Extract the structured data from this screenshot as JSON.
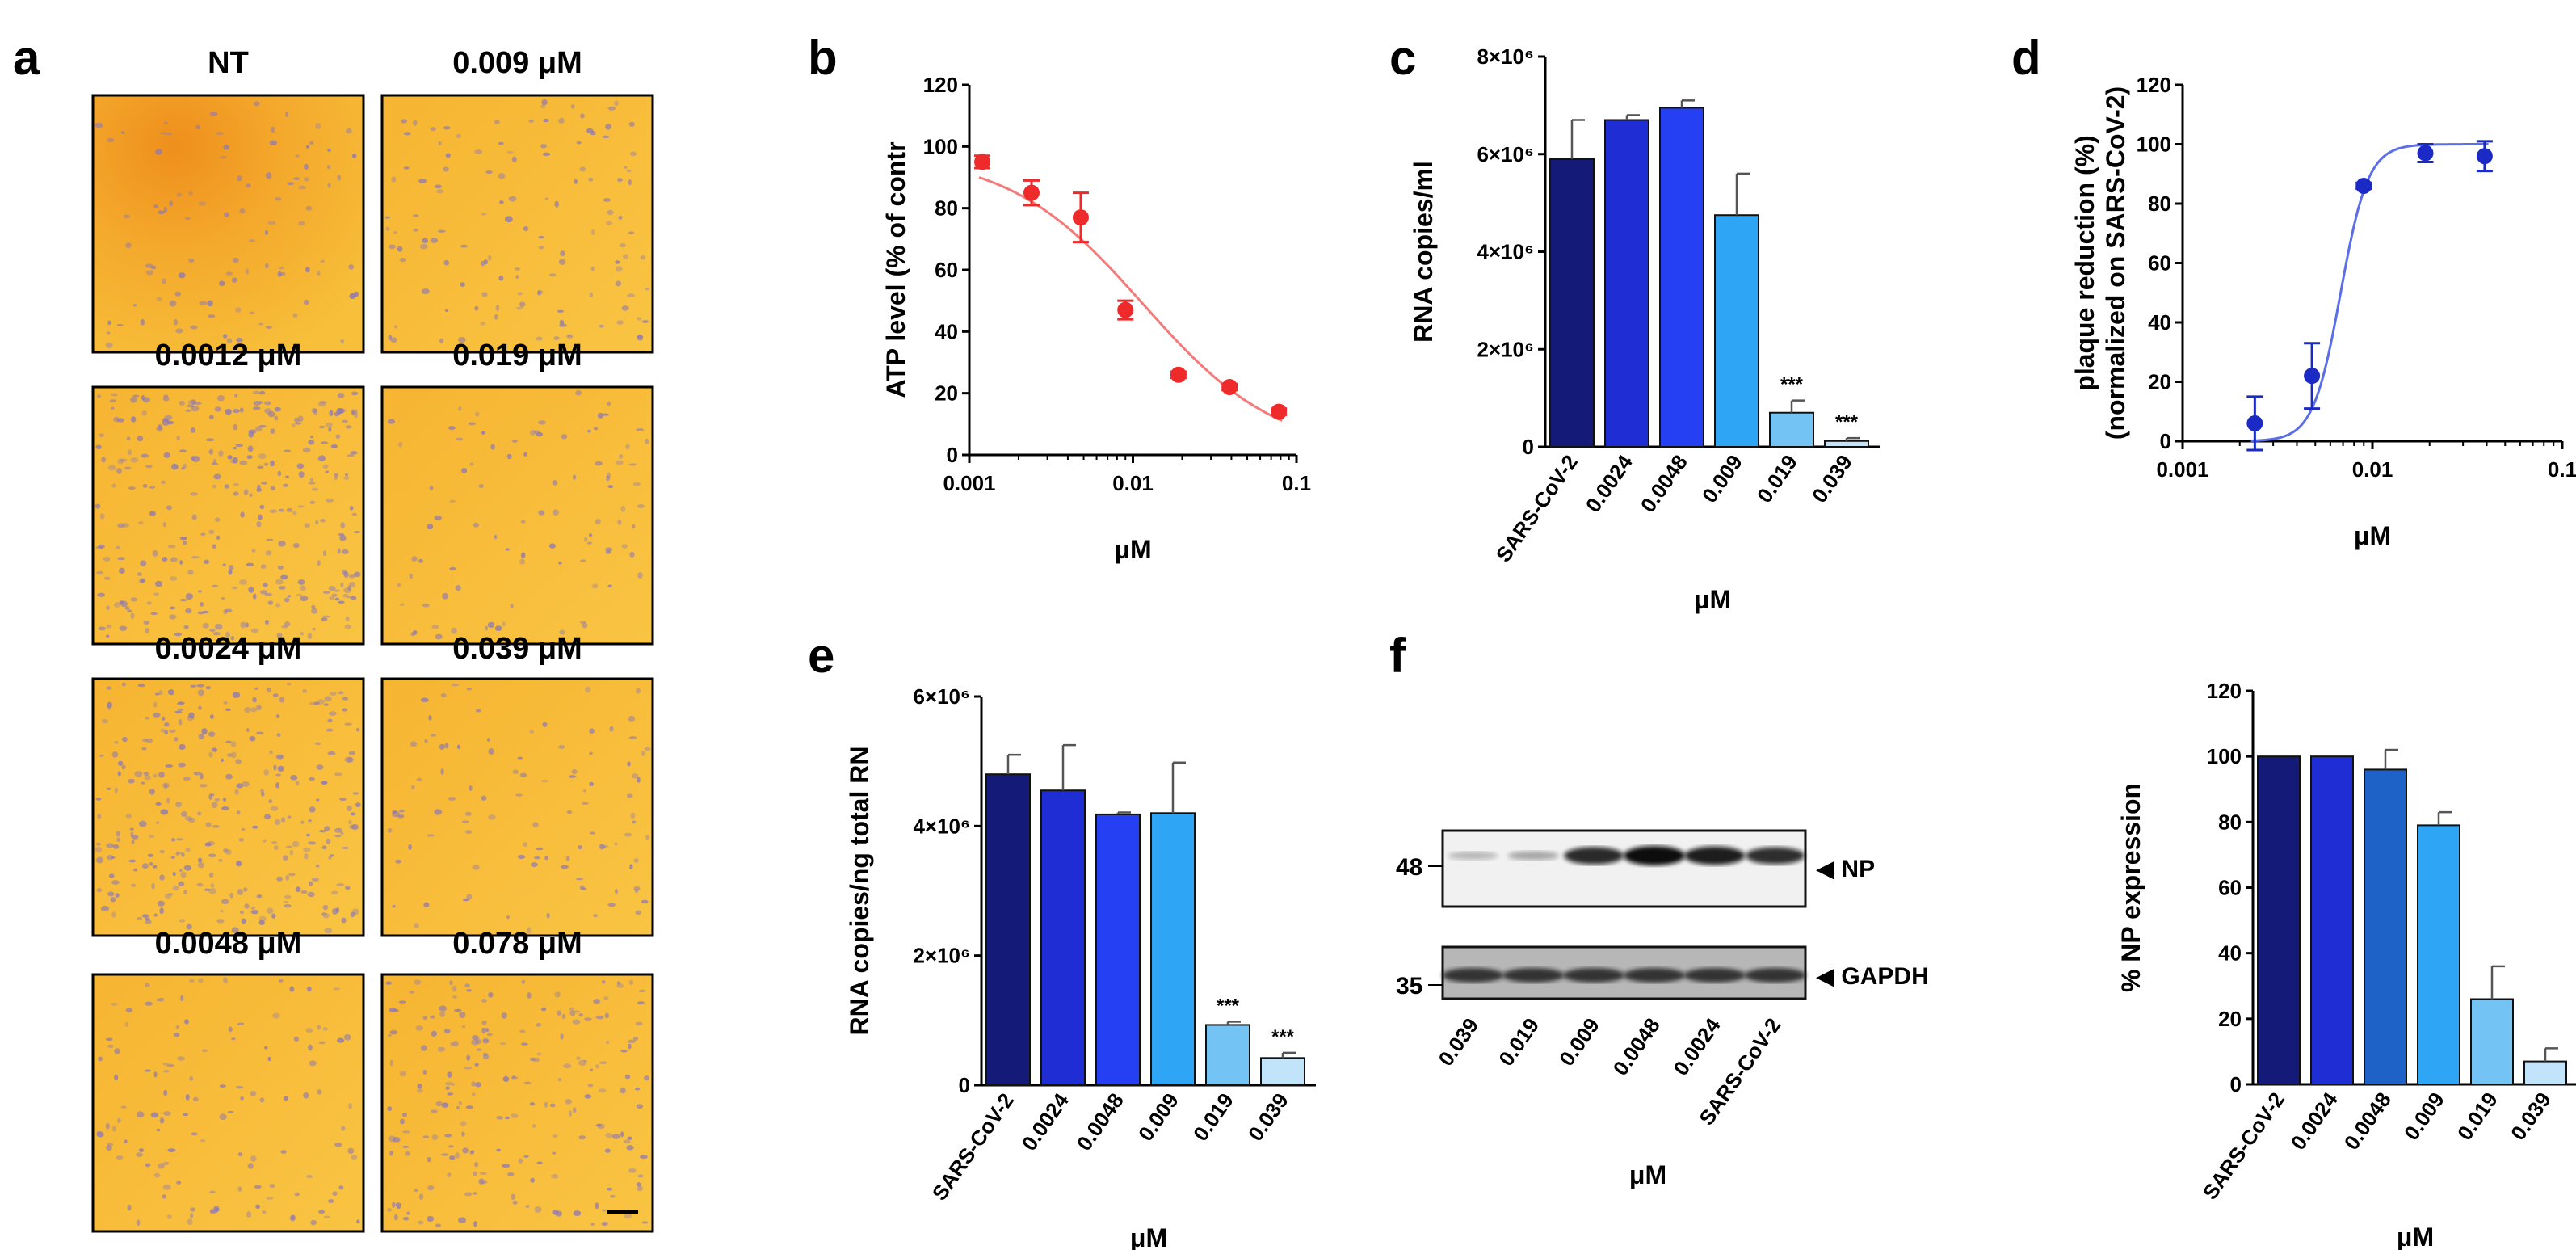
{
  "panel_letters": {
    "a": "a",
    "b": "b",
    "c": "c",
    "d": "d",
    "e": "e",
    "f": "f"
  },
  "micrographs": [
    {
      "label": "NT",
      "cell_density": 0.15
    },
    {
      "label": "0.009 μM",
      "cell_density": 0.25
    },
    {
      "label": "0.0012 μM",
      "cell_density": 1.0
    },
    {
      "label": "0.019 μM",
      "cell_density": 0.12
    },
    {
      "label": "0.0024 μM",
      "cell_density": 0.95
    },
    {
      "label": "0.039 μM",
      "cell_density": 0.15
    },
    {
      "label": "0.0048 μM",
      "cell_density": 0.25
    },
    {
      "label": "0.078 μM",
      "cell_density": 0.6
    }
  ],
  "colors": {
    "micro_bg": "#f6b935",
    "micro_bg_dark": "#ef8f1e",
    "cells": "#8e79b4",
    "red": "#ee2a2a",
    "red_fit": "#f37b7b",
    "dot_blue": "#1b2ac4",
    "fit_blue": "#5b6ee8",
    "bar_colors": [
      "#141a78",
      "#1e2ed4",
      "#2540f2",
      "#2fa6f5",
      "#74c3f5",
      "#c2e4fa"
    ],
    "bar_colors_f": [
      "#141a78",
      "#1e2ed4",
      "#1e62c8",
      "#2fa6f5",
      "#74c3f5",
      "#c2e4fa"
    ]
  },
  "chart_data": [
    {
      "panel": "b",
      "type": "scatter",
      "ylabel": "ATP level (% of contr",
      "xlabel": "μM",
      "x_scale": "log",
      "xlim": [
        0.001,
        0.1
      ],
      "ylim": [
        0,
        120
      ],
      "xticks": [
        "0.001",
        "0.01",
        "0.1"
      ],
      "yticks": [
        "0",
        "20",
        "40",
        "60",
        "80",
        "100",
        "120"
      ],
      "x": [
        0.0012,
        0.0024,
        0.0048,
        0.009,
        0.019,
        0.039,
        0.078
      ],
      "y": [
        95,
        85,
        77,
        47,
        26,
        22,
        14
      ],
      "err": [
        2,
        4,
        8,
        3,
        1,
        1,
        1
      ],
      "fit": {
        "ic50": 0.0115,
        "hill": 1.05,
        "top": 98,
        "bottom": 0
      }
    },
    {
      "panel": "c",
      "type": "bar",
      "ylabel": "RNA copies/ml",
      "xlabel": "μM",
      "ylim": [
        0,
        8000000
      ],
      "yticks": [
        "0",
        "2×10⁶",
        "4×10⁶",
        "6×10⁶",
        "8×10⁶"
      ],
      "categories": [
        "SARS-CoV-2",
        "0.0024",
        "0.0048",
        "0.009",
        "0.019",
        "0.039"
      ],
      "values": [
        5900000,
        6700000,
        6950000,
        4750000,
        700000,
        120000
      ],
      "err": [
        800000,
        100000,
        150000,
        850000,
        250000,
        60000
      ],
      "stars": [
        "",
        "",
        "",
        "",
        "***",
        "***"
      ]
    },
    {
      "panel": "d",
      "type": "scatter",
      "ylabel_line1": "plaque reduction (%)",
      "ylabel_line2": "(normalized on SARS-CoV-2)",
      "xlabel": "μM",
      "x_scale": "log",
      "xlim": [
        0.001,
        0.1
      ],
      "ylim": [
        0,
        120
      ],
      "xticks": [
        "0.001",
        "0.01",
        "0.1"
      ],
      "yticks": [
        "0",
        "20",
        "40",
        "60",
        "80",
        "100",
        "120"
      ],
      "x": [
        0.0024,
        0.0048,
        0.009,
        0.019,
        0.039
      ],
      "y": [
        6,
        22,
        86,
        97,
        96
      ],
      "err": [
        9,
        11,
        1,
        3,
        5
      ],
      "fit": {
        "ic50": 0.0068,
        "hill": 6,
        "top": 100,
        "bottom": 0
      }
    },
    {
      "panel": "e",
      "type": "bar",
      "ylabel": "RNA copies/ng total RN",
      "xlabel": "μM",
      "ylim": [
        0,
        6000000
      ],
      "yticks": [
        "0",
        "2×10⁶",
        "4×10⁶",
        "6×10⁶"
      ],
      "categories": [
        "SARS-CoV-2",
        "0.0024",
        "0.0048",
        "0.009",
        "0.019",
        "0.039"
      ],
      "values": [
        4800000,
        4550000,
        4180000,
        4200000,
        930000,
        420000
      ],
      "err": [
        300000,
        700000,
        30000,
        780000,
        50000,
        80000
      ],
      "stars": [
        "",
        "",
        "",
        "",
        "***",
        "***"
      ]
    },
    {
      "panel": "f",
      "type": "bar",
      "ylabel": "% NP expression",
      "xlabel": "μM",
      "ylim": [
        0,
        120
      ],
      "yticks": [
        "0",
        "20",
        "40",
        "60",
        "80",
        "100",
        "120"
      ],
      "categories": [
        "SARS-CoV-2",
        "0.0024",
        "0.0048",
        "0.009",
        "0.019",
        "0.039"
      ],
      "values": [
        100,
        100,
        96,
        79,
        26,
        7
      ],
      "err": [
        0,
        0,
        6,
        4,
        10,
        4
      ],
      "stars": [
        "",
        "",
        "",
        "",
        "",
        ""
      ]
    }
  ],
  "blot": {
    "lanes": [
      "0.039",
      "0.019",
      "0.009",
      "0.0048",
      "0.0024",
      "SARS-CoV-2"
    ],
    "xlabel": "μM",
    "np_label": "◀ NP",
    "gapdh_label": "◀ GAPDH",
    "np_marker": "48",
    "gapdh_marker": "35",
    "np_intensity": [
      0.12,
      0.2,
      0.85,
      1.0,
      0.92,
      0.82
    ],
    "gapdh_intensity": [
      0.85,
      0.85,
      0.85,
      0.85,
      0.85,
      0.85
    ]
  }
}
